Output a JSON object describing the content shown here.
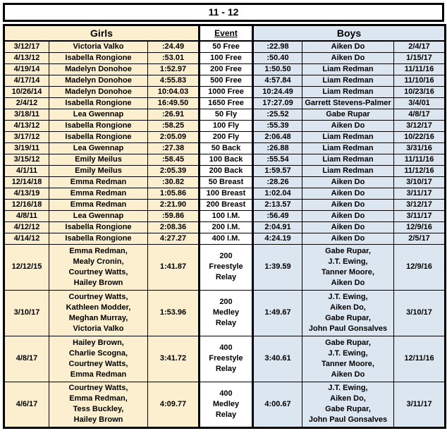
{
  "title": "11 - 12",
  "headers": {
    "girls": "Girls",
    "event": "Event",
    "boys": "Boys"
  },
  "colors": {
    "girls_bg": "#FCEFCF",
    "boys_bg": "#DCE6F1",
    "border": "#000000",
    "event_bg": "#FFFFFF"
  },
  "rows": [
    {
      "relay": false,
      "g_date": "3/12/17",
      "g_name": "Victoria Valko",
      "g_time": ":24.49",
      "event": "50 Free",
      "b_time": ":22.98",
      "b_name": "Aiken Do",
      "b_date": "2/4/17"
    },
    {
      "relay": false,
      "g_date": "4/13/12",
      "g_name": "Isabella Rongione",
      "g_time": ":53.01",
      "event": "100 Free",
      "b_time": ":50.40",
      "b_name": "Aiken Do",
      "b_date": "1/15/17"
    },
    {
      "relay": false,
      "g_date": "4/19/14",
      "g_name": "Madelyn Donohoe",
      "g_time": "1:52.97",
      "event": "200 Free",
      "b_time": "1:50.50",
      "b_name": "Liam Redman",
      "b_date": "11/11/16"
    },
    {
      "relay": false,
      "g_date": "4/17/14",
      "g_name": "Madelyn Donohoe",
      "g_time": "4:55.83",
      "event": "500 Free",
      "b_time": "4:57.84",
      "b_name": "Liam Redman",
      "b_date": "11/10/16"
    },
    {
      "relay": false,
      "g_date": "10/26/14",
      "g_name": "Madelyn Donohoe",
      "g_time": "10:04.03",
      "event": "1000 Free",
      "b_time": "10:24.49",
      "b_name": "Liam Redman",
      "b_date": "10/23/16"
    },
    {
      "relay": false,
      "g_date": "2/4/12",
      "g_name": "Isabella Rongione",
      "g_time": "16:49.50",
      "event": "1650 Free",
      "b_time": "17:27.09",
      "b_name": "Garrett Stevens-Palmer",
      "b_date": "3/4/01"
    },
    {
      "relay": false,
      "g_date": "3/18/11",
      "g_name": "Lea Gwennap",
      "g_time": ":26.91",
      "event": "50 Fly",
      "b_time": ":25.52",
      "b_name": "Gabe Rupar",
      "b_date": "4/8/17"
    },
    {
      "relay": false,
      "g_date": "4/13/12",
      "g_name": "Isabella Rongione",
      "g_time": ":58.25",
      "event": "100 Fly",
      "b_time": ":55.39",
      "b_name": "Aiken Do",
      "b_date": "3/12/17"
    },
    {
      "relay": false,
      "g_date": "3/17/12",
      "g_name": "Isabella Rongione",
      "g_time": "2:05.09",
      "event": "200 Fly",
      "b_time": "2:06.48",
      "b_name": "Liam Redman",
      "b_date": "10/22/16"
    },
    {
      "relay": false,
      "g_date": "3/19/11",
      "g_name": "Lea Gwennap",
      "g_time": ":27.38",
      "event": "50 Back",
      "b_time": ":26.88",
      "b_name": "Liam Redman",
      "b_date": "3/31/16"
    },
    {
      "relay": false,
      "g_date": "3/15/12",
      "g_name": "Emily Meilus",
      "g_time": ":58.45",
      "event": "100 Back",
      "b_time": ":55.54",
      "b_name": "Liam Redman",
      "b_date": "11/11/16"
    },
    {
      "relay": false,
      "g_date": "4/1/11",
      "g_name": "Emily Meilus",
      "g_time": "2:05.39",
      "event": "200 Back",
      "b_time": "1:59.57",
      "b_name": "Liam Redman",
      "b_date": "11/12/16"
    },
    {
      "relay": false,
      "g_date": "12/14/18",
      "g_name": "Emma Redman",
      "g_time": ":30.82",
      "event": "50 Breast",
      "b_time": ":28.26",
      "b_name": "Aiken Do",
      "b_date": "3/10/17"
    },
    {
      "relay": false,
      "g_date": "4/13/19",
      "g_name": "Emma Redman",
      "g_time": "1:05.86",
      "event": "100 Breast",
      "b_time": "1:02.04",
      "b_name": "Aiken Do",
      "b_date": "3/11/17"
    },
    {
      "relay": false,
      "g_date": "12/16/18",
      "g_name": "Emma Redman",
      "g_time": "2:21.90",
      "event": "200 Breast",
      "b_time": "2:13.57",
      "b_name": "Aiken Do",
      "b_date": "3/12/17"
    },
    {
      "relay": false,
      "g_date": "4/8/11",
      "g_name": "Lea Gwennap",
      "g_time": ":59.86",
      "event": "100 I.M.",
      "b_time": ":56.49",
      "b_name": "Aiken Do",
      "b_date": "3/11/17"
    },
    {
      "relay": false,
      "g_date": "4/12/12",
      "g_name": "Isabella Rongione",
      "g_time": "2:08.36",
      "event": "200 I.M.",
      "b_time": "2:04.91",
      "b_name": "Aiken Do",
      "b_date": "12/9/16"
    },
    {
      "relay": false,
      "g_date": "4/14/12",
      "g_name": "Isabella Rongione",
      "g_time": "4:27.27",
      "event": "400 I.M.",
      "b_time": "4:24.19",
      "b_name": "Aiken Do",
      "b_date": "2/5/17"
    },
    {
      "relay": true,
      "g_date": "12/12/15",
      "g_name": "Emma Redman,\nMealy Cronin,\nCourtney Watts,\nHailey Brown",
      "g_time": "1:41.87",
      "event": "200\nFreestyle\nRelay",
      "b_time": "1:39.59",
      "b_name": "Gabe Rupar,\nJ.T. Ewing,\nTanner Moore,\nAiken Do",
      "b_date": "12/9/16"
    },
    {
      "relay": true,
      "g_date": "3/10/17",
      "g_name": "Courtney Watts,\nKathleen Modder,\nMeghan Murray,\nVictoria Valko",
      "g_time": "1:53.96",
      "event": "200\nMedley\nRelay",
      "b_time": "1:49.67",
      "b_name": "J.T. Ewing,\nAiken Do,\nGabe Rupar,\nJohn Paul Gonsalves",
      "b_date": "3/10/17"
    },
    {
      "relay": true,
      "g_date": "4/8/17",
      "g_name": "Hailey Brown,\nCharlie Scogna,\nCourtney Watts,\nEmma Redman",
      "g_time": "3:41.72",
      "event": "400\nFreestyle\nRelay",
      "b_time": "3:40.61",
      "b_name": "Gabe Rupar,\nJ.T. Ewing,\nTanner Moore,\nAiken Do",
      "b_date": "12/11/16"
    },
    {
      "relay": true,
      "g_date": "4/6/17",
      "g_name": "Courtney Watts,\nEmma Redman,\nTess Buckley,\nHailey Brown",
      "g_time": "4:09.77",
      "event": "400\nMedley\nRelay",
      "b_time": "4:00.67",
      "b_name": "J.T. Ewing,\nAiken Do,\nGabe Rupar,\nJohn Paul Gonsalves",
      "b_date": "3/11/17"
    }
  ]
}
